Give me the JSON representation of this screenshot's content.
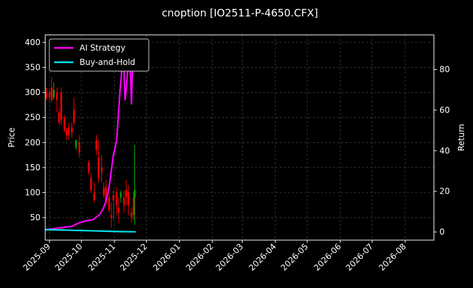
{
  "chart_data": {
    "type": "line",
    "title": "cnoption [IO2511-P-4650.CFX]",
    "xlabel": "",
    "ylabel": "Price",
    "y2label": "Return",
    "x_ticks": [
      "2025-09",
      "2025-10",
      "2025-11",
      "2025-12",
      "2026-01",
      "2026-02",
      "2026-03",
      "2026-04",
      "2026-05",
      "2026-06",
      "2026-07",
      "2026-08"
    ],
    "y_ticks": [
      50,
      100,
      150,
      200,
      250,
      300,
      350,
      400
    ],
    "y2_ticks": [
      0,
      20,
      40,
      60,
      80
    ],
    "xlim": [
      "2025-08-28",
      "2026-08-28"
    ],
    "ylim": [
      5,
      415
    ],
    "y2lim": [
      -4,
      97
    ],
    "grid": true,
    "legend_position": "top-left",
    "colors": {
      "background": "#000000",
      "ai_strategy": "#ff00ff",
      "buy_and_hold": "#00e5ee",
      "candle_up": "#00aa00",
      "candle_down": "#ff0000",
      "grid": "#555555"
    },
    "series": [
      {
        "name": "AI Strategy",
        "axis": "right",
        "x": [
          "2025-08-28",
          "2025-09-03",
          "2025-09-10",
          "2025-09-17",
          "2025-09-22",
          "2025-09-24",
          "2025-09-29",
          "2025-10-05",
          "2025-10-09",
          "2025-10-12",
          "2025-10-14",
          "2025-10-18",
          "2025-10-21",
          "2025-10-24",
          "2025-10-27",
          "2025-10-29",
          "2025-10-31",
          "2025-11-01",
          "2025-11-03",
          "2025-11-04",
          "2025-11-05",
          "2025-11-06",
          "2025-11-08",
          "2025-11-09",
          "2025-11-10",
          "2025-11-11",
          "2025-11-12",
          "2025-11-14",
          "2025-11-16",
          "2025-11-17",
          "2025-11-18",
          "2025-11-19",
          "2025-11-21"
        ],
        "values": [
          1,
          1.5,
          2,
          2.5,
          2.7,
          3.3,
          4.5,
          5.5,
          5.8,
          6,
          7,
          8.5,
          11,
          15,
          22,
          30,
          38,
          40,
          45,
          52,
          60,
          68,
          80,
          90,
          78,
          65,
          70,
          83,
          78,
          63,
          82,
          90,
          89
        ]
      },
      {
        "name": "Buy-and-Hold",
        "axis": "right",
        "x": [
          "2025-08-28",
          "2025-09-10",
          "2025-09-24",
          "2025-10-08",
          "2025-10-22",
          "2025-11-05",
          "2025-11-21"
        ],
        "values": [
          1.2,
          1.0,
          0.8,
          0.6,
          0.4,
          0.2,
          0.1
        ]
      }
    ],
    "candles": {
      "axis": "left",
      "x": [
        "2025-08-29",
        "2025-09-01",
        "2025-09-03",
        "2025-09-05",
        "2025-09-08",
        "2025-09-10",
        "2025-09-12",
        "2025-09-15",
        "2025-09-17",
        "2025-09-19",
        "2025-09-22",
        "2025-09-24",
        "2025-09-26",
        "2025-09-29",
        "2025-10-08",
        "2025-10-10",
        "2025-10-13",
        "2025-10-15",
        "2025-10-17",
        "2025-10-20",
        "2025-10-22",
        "2025-10-24",
        "2025-10-27",
        "2025-10-29",
        "2025-10-31",
        "2025-11-03",
        "2025-11-05",
        "2025-11-07",
        "2025-11-10",
        "2025-11-12",
        "2025-11-14",
        "2025-11-17",
        "2025-11-19",
        "2025-11-20"
      ],
      "open": [
        300,
        300,
        310,
        290,
        300,
        260,
        300,
        250,
        225,
        230,
        230,
        265,
        190,
        200,
        160,
        130,
        100,
        205,
        170,
        150,
        110,
        110,
        90,
        55,
        95,
        100,
        70,
        90,
        90,
        105,
        100,
        60,
        90,
        90
      ],
      "close": [
        290,
        290,
        285,
        305,
        285,
        240,
        245,
        225,
        215,
        215,
        220,
        240,
        205,
        180,
        140,
        105,
        85,
        185,
        130,
        140,
        95,
        80,
        65,
        50,
        85,
        75,
        60,
        100,
        75,
        90,
        75,
        50,
        55,
        105
      ],
      "high": [
        310,
        305,
        330,
        320,
        310,
        270,
        310,
        255,
        230,
        240,
        240,
        290,
        200,
        215,
        165,
        140,
        120,
        215,
        205,
        175,
        120,
        125,
        100,
        80,
        105,
        110,
        90,
        105,
        105,
        125,
        115,
        70,
        100,
        195
      ],
      "low": [
        285,
        280,
        280,
        285,
        260,
        235,
        235,
        220,
        205,
        205,
        210,
        235,
        185,
        170,
        135,
        100,
        80,
        175,
        120,
        120,
        90,
        75,
        60,
        30,
        45,
        55,
        40,
        80,
        60,
        75,
        55,
        40,
        45,
        35
      ]
    }
  }
}
